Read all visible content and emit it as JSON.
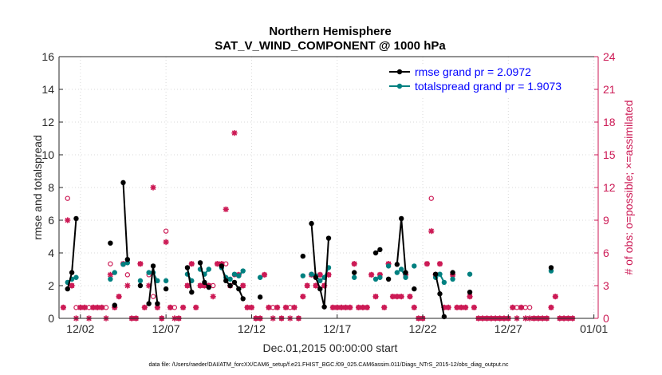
{
  "chart_data": {
    "type": "line",
    "title": [
      "Northern Hemisphere",
      "SAT_V_WIND_COMPONENT @ 1000 hPa"
    ],
    "xlabel": "Dec.01,2015 00:00:00 start",
    "ylabel_left": "rmse and totalspread",
    "ylabel_right": "# of obs: o=possible; ×=assimilated",
    "footnote": "data file: /Users/raeder/DAI/ATM_forcXX/CAM6_setup/f.e21.FHIST_BGC.f09_025.CAM6assim.011/Diags_NTrS_2015-12/obs_diag_output.nc",
    "x_ticks": [
      {
        "v": 2,
        "label": "12/02"
      },
      {
        "v": 7,
        "label": "12/07"
      },
      {
        "v": 12,
        "label": "12/12"
      },
      {
        "v": 17,
        "label": "12/17"
      },
      {
        "v": 22,
        "label": "12/22"
      },
      {
        "v": 27,
        "label": "12/27"
      },
      {
        "v": 32,
        "label": "01/01"
      }
    ],
    "y_ticks_left": [
      "0",
      "2",
      "4",
      "6",
      "8",
      "10",
      "12",
      "14",
      "16"
    ],
    "y_ticks_right": [
      "0",
      "3",
      "6",
      "9",
      "12",
      "15",
      "18",
      "21",
      "24"
    ],
    "xlim": [
      0.75,
      32.25
    ],
    "ylim_left": [
      0,
      16
    ],
    "ylim_right": [
      0,
      24
    ],
    "legend": {
      "position": "top-right",
      "entries": [
        "rmse grand pr = 2.0972",
        "totalspread grand pr = 1.9073"
      ]
    },
    "colors": {
      "rmse": "#000000",
      "totalspread": "#008080",
      "obs": "#cc1a55",
      "axis": "#262626",
      "grid": "#d9d9d9"
    },
    "series": [
      {
        "name": "rmse",
        "segments": [
          [
            [
              1.25,
              1.8
            ],
            [
              1.5,
              2.8
            ],
            [
              1.75,
              6.1
            ]
          ],
          [
            [
              3.75,
              4.6
            ]
          ],
          [
            [
              4.0,
              0.8
            ]
          ],
          [
            [
              4.5,
              8.3
            ],
            [
              4.75,
              3.6
            ]
          ],
          [
            [
              5.5,
              2.0
            ]
          ],
          [
            [
              6.0,
              0.9
            ],
            [
              6.25,
              3.2
            ],
            [
              6.5,
              0.9
            ]
          ],
          [
            [
              7.0,
              1.8
            ]
          ],
          [
            [
              8.25,
              3.1
            ],
            [
              8.5,
              1.6
            ]
          ],
          [
            [
              9.0,
              3.4
            ],
            [
              9.25,
              2.2
            ],
            [
              9.5,
              1.9
            ]
          ],
          [
            [
              10.25,
              3.2
            ],
            [
              10.5,
              2.3
            ],
            [
              10.75,
              2.0
            ]
          ],
          [
            [
              11.0,
              2.2
            ],
            [
              11.25,
              1.8
            ],
            [
              11.5,
              1.2
            ]
          ],
          [
            [
              12.5,
              1.3
            ]
          ],
          [
            [
              15.0,
              3.8
            ]
          ],
          [
            [
              15.5,
              5.8
            ],
            [
              15.75,
              2.5
            ],
            [
              16.0,
              1.8
            ],
            [
              16.25,
              0.7
            ],
            [
              16.5,
              4.9
            ]
          ],
          [
            [
              18.0,
              2.8
            ]
          ],
          [
            [
              19.25,
              4.0
            ],
            [
              19.5,
              4.2
            ]
          ],
          [
            [
              20.0,
              2.4
            ]
          ],
          [
            [
              20.5,
              3.3
            ],
            [
              20.75,
              6.1
            ],
            [
              21.0,
              2.8
            ]
          ],
          [
            [
              21.5,
              1.8
            ]
          ],
          [
            [
              22.75,
              2.7
            ],
            [
              23.0,
              1.5
            ],
            [
              23.25,
              0.1
            ]
          ],
          [
            [
              23.75,
              2.8
            ]
          ],
          [
            [
              24.75,
              1.6
            ]
          ],
          [
            [
              29.5,
              3.1
            ]
          ]
        ]
      },
      {
        "name": "totalspread",
        "segments": [
          [
            [
              1.25,
              2.2
            ],
            [
              1.5,
              2.4
            ],
            [
              1.75,
              2.5
            ]
          ],
          [
            [
              3.75,
              2.4
            ]
          ],
          [
            [
              4.0,
              2.8
            ]
          ],
          [
            [
              4.5,
              3.3
            ],
            [
              4.75,
              3.4
            ]
          ],
          [
            [
              5.5,
              2.3
            ]
          ],
          [
            [
              6.0,
              2.8
            ],
            [
              6.25,
              2.8
            ],
            [
              6.5,
              2.3
            ]
          ],
          [
            [
              7.0,
              2.3
            ]
          ],
          [
            [
              8.25,
              2.7
            ],
            [
              8.5,
              2.3
            ]
          ],
          [
            [
              9.0,
              3.0
            ],
            [
              9.25,
              2.7
            ],
            [
              9.5,
              3.0
            ]
          ],
          [
            [
              10.25,
              3.1
            ],
            [
              10.5,
              2.5
            ],
            [
              10.75,
              2.4
            ]
          ],
          [
            [
              11.0,
              2.7
            ],
            [
              11.25,
              2.6
            ],
            [
              11.5,
              2.9
            ]
          ],
          [
            [
              12.5,
              2.5
            ]
          ],
          [
            [
              15.0,
              2.6
            ]
          ],
          [
            [
              15.5,
              2.7
            ],
            [
              15.75,
              2.6
            ],
            [
              16.0,
              2.3
            ],
            [
              16.25,
              2.5
            ],
            [
              16.5,
              3.1
            ]
          ],
          [
            [
              18.0,
              2.5
            ]
          ],
          [
            [
              19.25,
              2.4
            ],
            [
              19.5,
              2.5
            ]
          ],
          [
            [
              20.0,
              3.2
            ]
          ],
          [
            [
              20.5,
              2.8
            ],
            [
              20.75,
              3.0
            ],
            [
              21.0,
              2.5
            ]
          ],
          [
            [
              21.5,
              3.2
            ]
          ],
          [
            [
              22.75,
              2.5
            ],
            [
              23.0,
              2.7
            ],
            [
              23.25,
              2.2
            ]
          ],
          [
            [
              23.75,
              2.4
            ]
          ],
          [
            [
              24.75,
              2.7
            ]
          ],
          [
            [
              29.5,
              2.9
            ]
          ]
        ]
      }
    ],
    "obs_possible": [
      [
        1.0,
        1
      ],
      [
        1.25,
        11
      ],
      [
        1.5,
        3
      ],
      [
        1.75,
        1
      ],
      [
        2.0,
        1
      ],
      [
        2.25,
        1
      ],
      [
        2.5,
        1
      ],
      [
        2.75,
        1
      ],
      [
        3.0,
        1
      ],
      [
        3.25,
        1
      ],
      [
        3.5,
        1
      ],
      [
        3.75,
        5
      ],
      [
        4.0,
        1
      ],
      [
        4.25,
        2
      ],
      [
        4.5,
        5
      ],
      [
        4.75,
        4
      ],
      [
        5.0,
        0
      ],
      [
        5.25,
        0
      ],
      [
        5.5,
        5
      ],
      [
        5.75,
        1
      ],
      [
        6.0,
        4
      ],
      [
        6.25,
        2
      ],
      [
        6.5,
        1
      ],
      [
        6.75,
        0
      ],
      [
        7.0,
        8
      ],
      [
        7.25,
        1
      ],
      [
        7.5,
        1
      ],
      [
        7.75,
        0
      ],
      [
        8.0,
        1
      ],
      [
        8.25,
        3
      ],
      [
        8.5,
        5
      ],
      [
        8.75,
        1
      ],
      [
        9.0,
        3
      ],
      [
        9.25,
        3
      ],
      [
        9.5,
        3
      ],
      [
        9.75,
        3
      ],
      [
        10.0,
        5
      ],
      [
        10.25,
        5
      ],
      [
        10.5,
        5
      ],
      [
        10.75,
        3
      ],
      [
        11.0,
        4
      ],
      [
        11.25,
        4
      ],
      [
        11.5,
        3
      ],
      [
        11.75,
        1
      ],
      [
        12.0,
        1
      ],
      [
        12.25,
        0
      ],
      [
        12.5,
        0
      ],
      [
        12.75,
        4
      ],
      [
        13.0,
        1
      ],
      [
        13.25,
        1
      ],
      [
        13.5,
        1
      ],
      [
        13.75,
        0
      ],
      [
        14.0,
        1
      ],
      [
        14.25,
        1
      ],
      [
        14.5,
        1
      ],
      [
        14.75,
        0
      ],
      [
        15.0,
        2
      ],
      [
        15.25,
        3
      ],
      [
        15.5,
        4
      ],
      [
        15.75,
        3
      ],
      [
        16.0,
        4
      ],
      [
        16.25,
        3
      ],
      [
        16.5,
        4
      ],
      [
        16.75,
        1
      ],
      [
        17.0,
        1
      ],
      [
        17.25,
        1
      ],
      [
        17.5,
        1
      ],
      [
        17.75,
        1
      ],
      [
        18.0,
        5
      ],
      [
        18.25,
        1
      ],
      [
        18.5,
        1
      ],
      [
        18.75,
        1
      ],
      [
        19.0,
        4
      ],
      [
        19.25,
        2
      ],
      [
        19.5,
        4
      ],
      [
        19.75,
        1
      ],
      [
        20.0,
        5
      ],
      [
        20.25,
        2
      ],
      [
        20.5,
        2
      ],
      [
        20.75,
        2
      ],
      [
        21.0,
        4
      ],
      [
        21.25,
        2
      ],
      [
        21.5,
        1
      ],
      [
        21.75,
        0
      ],
      [
        22.0,
        0
      ],
      [
        22.25,
        5
      ],
      [
        22.5,
        11
      ],
      [
        22.75,
        4
      ],
      [
        23.0,
        5
      ],
      [
        23.25,
        1
      ],
      [
        23.5,
        1
      ],
      [
        23.75,
        4
      ],
      [
        24.0,
        1
      ],
      [
        24.25,
        1
      ],
      [
        24.5,
        1
      ],
      [
        24.75,
        2
      ],
      [
        25.0,
        1
      ],
      [
        25.25,
        0
      ],
      [
        25.5,
        0
      ],
      [
        25.75,
        0
      ],
      [
        26.0,
        0
      ],
      [
        26.25,
        0
      ],
      [
        26.5,
        0
      ],
      [
        26.75,
        0
      ],
      [
        27.0,
        0
      ],
      [
        27.25,
        1
      ],
      [
        27.5,
        1
      ],
      [
        27.75,
        1
      ],
      [
        28.0,
        1
      ],
      [
        28.25,
        1
      ],
      [
        28.5,
        0
      ],
      [
        28.75,
        0
      ],
      [
        29.0,
        0
      ],
      [
        29.25,
        0
      ],
      [
        29.5,
        1
      ],
      [
        29.75,
        2
      ],
      [
        30.0,
        0
      ],
      [
        30.25,
        0
      ],
      [
        30.5,
        0
      ],
      [
        30.75,
        0
      ]
    ],
    "obs_assimilated": [
      [
        1.0,
        1
      ],
      [
        1.25,
        9
      ],
      [
        1.5,
        3
      ],
      [
        1.75,
        0
      ],
      [
        2.0,
        1
      ],
      [
        2.25,
        1
      ],
      [
        2.5,
        0
      ],
      [
        2.75,
        1
      ],
      [
        3.0,
        1
      ],
      [
        3.25,
        1
      ],
      [
        3.5,
        0
      ],
      [
        3.75,
        4
      ],
      [
        4.0,
        1
      ],
      [
        4.25,
        2
      ],
      [
        4.5,
        5
      ],
      [
        4.75,
        3
      ],
      [
        5.0,
        0
      ],
      [
        5.25,
        0
      ],
      [
        5.5,
        5
      ],
      [
        5.75,
        1
      ],
      [
        6.0,
        3
      ],
      [
        6.25,
        12
      ],
      [
        6.5,
        1
      ],
      [
        6.75,
        0
      ],
      [
        7.0,
        7
      ],
      [
        7.25,
        1
      ],
      [
        7.5,
        0
      ],
      [
        7.75,
        0
      ],
      [
        8.0,
        1
      ],
      [
        8.25,
        3
      ],
      [
        8.5,
        5
      ],
      [
        8.75,
        1
      ],
      [
        9.0,
        3
      ],
      [
        9.25,
        3
      ],
      [
        9.5,
        3
      ],
      [
        9.75,
        2
      ],
      [
        10.0,
        5
      ],
      [
        10.25,
        5
      ],
      [
        10.5,
        10
      ],
      [
        10.75,
        3
      ],
      [
        11.0,
        17
      ],
      [
        11.25,
        4
      ],
      [
        11.5,
        3
      ],
      [
        11.75,
        1
      ],
      [
        12.0,
        1
      ],
      [
        12.25,
        0
      ],
      [
        12.5,
        0
      ],
      [
        12.75,
        4
      ],
      [
        13.0,
        1
      ],
      [
        13.25,
        0
      ],
      [
        13.5,
        1
      ],
      [
        13.75,
        0
      ],
      [
        14.0,
        1
      ],
      [
        14.25,
        0
      ],
      [
        14.5,
        1
      ],
      [
        14.75,
        0
      ],
      [
        15.0,
        2
      ],
      [
        15.25,
        3
      ],
      [
        15.5,
        4
      ],
      [
        15.75,
        3
      ],
      [
        16.0,
        4
      ],
      [
        16.25,
        3
      ],
      [
        16.5,
        4
      ],
      [
        16.75,
        1
      ],
      [
        17.0,
        1
      ],
      [
        17.25,
        1
      ],
      [
        17.5,
        1
      ],
      [
        17.75,
        1
      ],
      [
        18.0,
        5
      ],
      [
        18.25,
        1
      ],
      [
        18.5,
        1
      ],
      [
        18.75,
        1
      ],
      [
        19.0,
        4
      ],
      [
        19.25,
        2
      ],
      [
        19.5,
        4
      ],
      [
        19.75,
        1
      ],
      [
        20.0,
        5
      ],
      [
        20.25,
        2
      ],
      [
        20.5,
        2
      ],
      [
        20.75,
        2
      ],
      [
        21.0,
        4
      ],
      [
        21.25,
        2
      ],
      [
        21.5,
        1
      ],
      [
        21.75,
        0
      ],
      [
        22.0,
        0
      ],
      [
        22.25,
        5
      ],
      [
        22.5,
        8
      ],
      [
        22.75,
        4
      ],
      [
        23.0,
        5
      ],
      [
        23.25,
        1
      ],
      [
        23.5,
        1
      ],
      [
        23.75,
        4
      ],
      [
        24.0,
        1
      ],
      [
        24.25,
        1
      ],
      [
        24.5,
        1
      ],
      [
        24.75,
        2
      ],
      [
        25.0,
        1
      ],
      [
        25.25,
        0
      ],
      [
        25.5,
        0
      ],
      [
        25.75,
        0
      ],
      [
        26.0,
        0
      ],
      [
        26.25,
        0
      ],
      [
        26.5,
        0
      ],
      [
        26.75,
        0
      ],
      [
        27.0,
        0
      ],
      [
        27.25,
        1
      ],
      [
        27.5,
        0
      ],
      [
        27.75,
        1
      ],
      [
        28.0,
        0
      ],
      [
        28.25,
        0
      ],
      [
        28.5,
        0
      ],
      [
        28.75,
        0
      ],
      [
        29.0,
        0
      ],
      [
        29.25,
        0
      ],
      [
        29.5,
        1
      ],
      [
        29.75,
        2
      ],
      [
        30.0,
        0
      ],
      [
        30.25,
        0
      ],
      [
        30.5,
        0
      ],
      [
        30.75,
        0
      ]
    ]
  }
}
